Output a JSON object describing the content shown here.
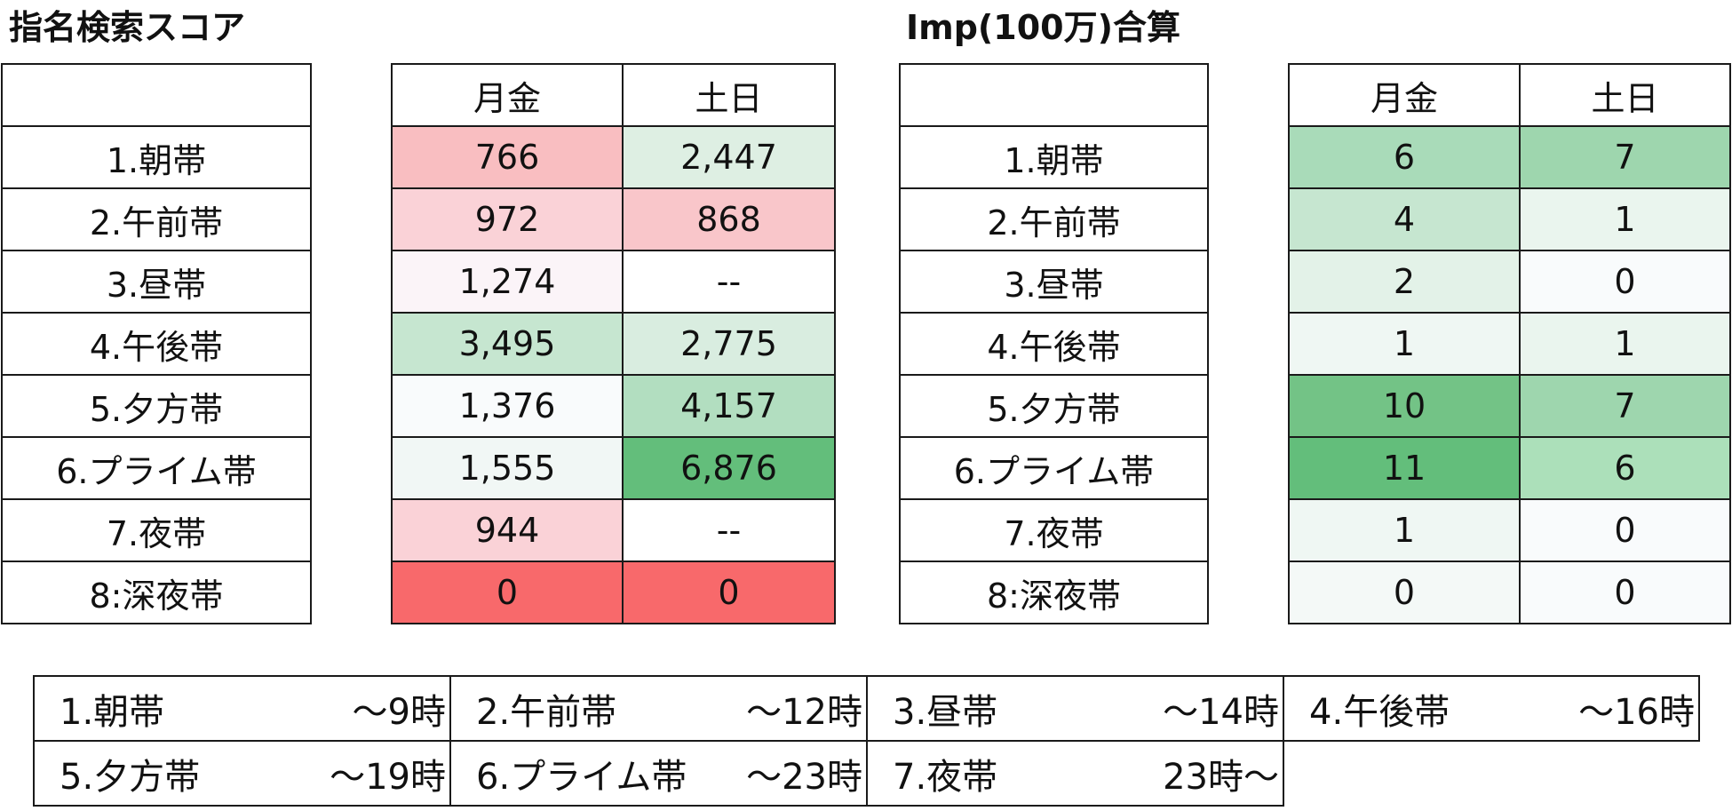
{
  "titles": {
    "search": "指名検索スコア",
    "imp": "Imp(100万)合算"
  },
  "headers": {
    "weekday": "月金",
    "weekend": "土日"
  },
  "colors": {
    "red_strong": "#f8696b",
    "red_mid": "#f9bec1",
    "red_light": "#fad2d7",
    "near_white_pink": "#fbf4f8",
    "near_white": "#f9fbfc",
    "green_faint": "#eff7f3",
    "green_light": "#deefe3",
    "green_mid": "#c6e6d0",
    "green_mid2": "#a9dbb9",
    "green_strong": "#63be7b",
    "green_strong2": "#73c386"
  },
  "search_score": {
    "rows": [
      {
        "label": "1.朝帯",
        "weekday": "766",
        "weekend": "2,447",
        "weekday_color": "#f9bec1",
        "weekend_color": "#deefe3"
      },
      {
        "label": "2.午前帯",
        "weekday": "972",
        "weekend": "868",
        "weekday_color": "#fad2d7",
        "weekend_color": "#f9c6ca"
      },
      {
        "label": "3.昼帯",
        "weekday": "1,274",
        "weekend": "--",
        "weekday_color": "#fbf4f8",
        "weekend_color": "#ffffff"
      },
      {
        "label": "4.午後帯",
        "weekday": "3,495",
        "weekend": "2,775",
        "weekday_color": "#c6e6d0",
        "weekend_color": "#d9ede0"
      },
      {
        "label": "5.夕方帯",
        "weekday": "1,376",
        "weekend": "4,157",
        "weekday_color": "#f9fbfc",
        "weekend_color": "#b2dec0"
      },
      {
        "label": "6.プライム帯",
        "weekday": "1,555",
        "weekend": "6,876",
        "weekday_color": "#f1f7f5",
        "weekend_color": "#63be7b"
      },
      {
        "label": "7.夜帯",
        "weekday": "944",
        "weekend": "--",
        "weekday_color": "#fad2d7",
        "weekend_color": "#ffffff"
      },
      {
        "label": "8:深夜帯",
        "weekday": "0",
        "weekend": "0",
        "weekday_color": "#f8696b",
        "weekend_color": "#f8696b"
      }
    ]
  },
  "imp_total": {
    "rows": [
      {
        "label": "1.朝帯",
        "weekday": "6",
        "weekend": "7",
        "weekday_color": "#a9dbb9",
        "weekend_color": "#9ed6ae"
      },
      {
        "label": "2.午前帯",
        "weekday": "4",
        "weekend": "1",
        "weekday_color": "#c6e6d0",
        "weekend_color": "#eaf5ee"
      },
      {
        "label": "3.昼帯",
        "weekday": "2",
        "weekend": "0",
        "weekday_color": "#e3f2e8",
        "weekend_color": "#f9fbfc"
      },
      {
        "label": "4.午後帯",
        "weekday": "1",
        "weekend": "1",
        "weekday_color": "#eff7f3",
        "weekend_color": "#eaf5ee"
      },
      {
        "label": "5.夕方帯",
        "weekday": "10",
        "weekend": "7",
        "weekday_color": "#73c386",
        "weekend_color": "#9ed6ae"
      },
      {
        "label": "6.プライム帯",
        "weekday": "11",
        "weekend": "6",
        "weekday_color": "#63be7b",
        "weekend_color": "#ace0ba"
      },
      {
        "label": "7.夜帯",
        "weekday": "1",
        "weekend": "0",
        "weekday_color": "#eff7f3",
        "weekend_color": "#f9fbfc"
      },
      {
        "label": "8:深夜帯",
        "weekday": "0",
        "weekend": "0",
        "weekday_color": "#f4f9f7",
        "weekend_color": "#f9fbfc"
      }
    ]
  },
  "legend": [
    [
      {
        "name": "1.朝帯",
        "range": "～9時"
      },
      {
        "name": "2.午前帯",
        "range": "～12時"
      },
      {
        "name": "3.昼帯",
        "range": "～14時"
      },
      {
        "name": "4.午後帯",
        "range": "～16時"
      }
    ],
    [
      {
        "name": "5.夕方帯",
        "range": "～19時"
      },
      {
        "name": "6.プライム帯",
        "range": "～23時"
      },
      {
        "name": "7.夜帯",
        "range": "23時～"
      }
    ]
  ]
}
